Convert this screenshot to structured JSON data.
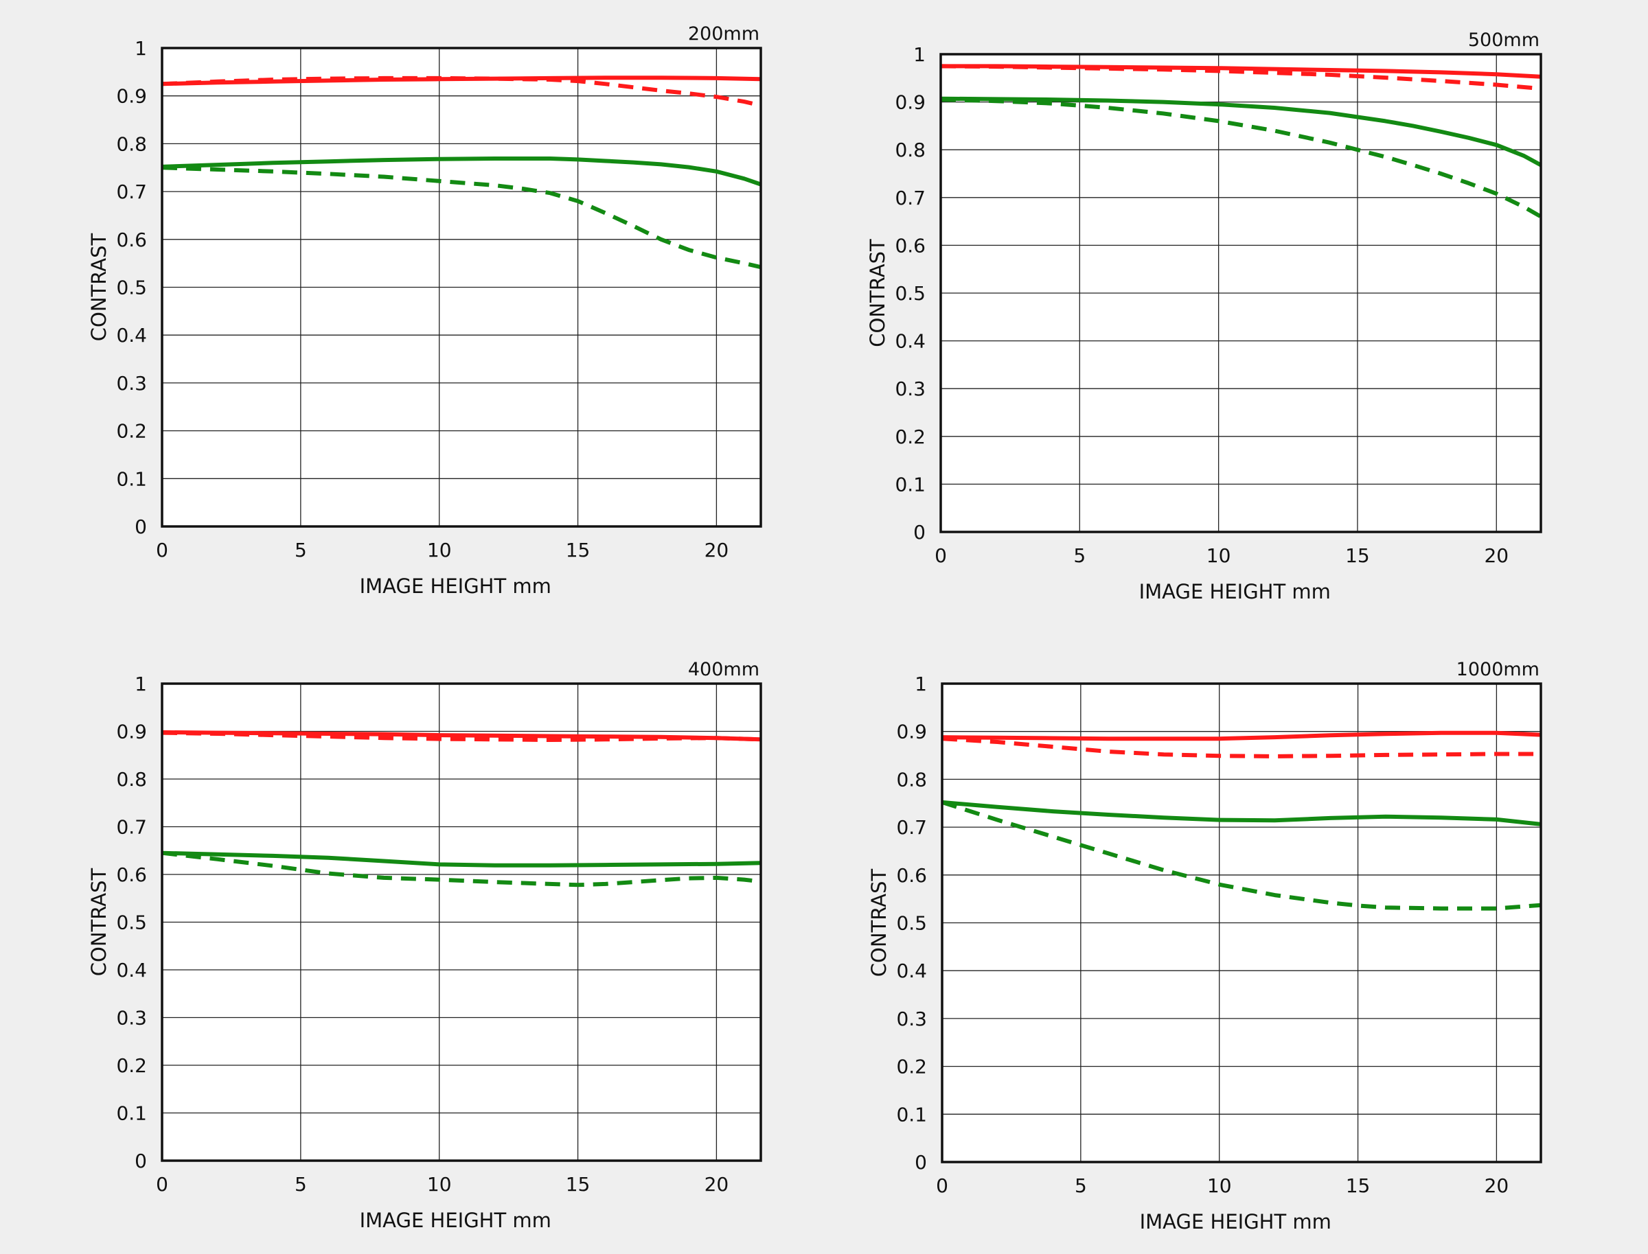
{
  "chart_data": [
    {
      "type": "line",
      "title": "200mm",
      "xlabel": "IMAGE HEIGHT   mm",
      "ylabel": "CONTRAST",
      "xlim": [
        0,
        21.6
      ],
      "ylim": [
        0,
        1
      ],
      "xticks": [
        "0",
        "5",
        "10",
        "15",
        "20"
      ],
      "yticks": [
        "0",
        "0.1",
        "0.2",
        "0.3",
        "0.4",
        "0.5",
        "0.6",
        "0.7",
        "0.8",
        "0.9",
        "1"
      ],
      "grid": true,
      "series": [
        {
          "color": "#ff1a1a",
          "dash": "solid",
          "x": [
            0,
            2,
            4,
            6,
            8,
            10,
            12,
            14,
            16,
            18,
            20,
            21.6
          ],
          "y": [
            0.925,
            0.928,
            0.93,
            0.932,
            0.934,
            0.935,
            0.936,
            0.937,
            0.938,
            0.938,
            0.937,
            0.935
          ]
        },
        {
          "color": "#ff1a1a",
          "dash": "dashed",
          "x": [
            0,
            2,
            4,
            6,
            8,
            10,
            12,
            14,
            15,
            16,
            17,
            18,
            19,
            20,
            21,
            21.6
          ],
          "y": [
            0.925,
            0.93,
            0.934,
            0.936,
            0.937,
            0.937,
            0.936,
            0.934,
            0.931,
            0.925,
            0.918,
            0.911,
            0.905,
            0.898,
            0.888,
            0.88
          ]
        },
        {
          "color": "#138a13",
          "dash": "solid",
          "x": [
            0,
            2,
            4,
            6,
            8,
            10,
            12,
            14,
            15,
            16,
            17,
            18,
            19,
            20,
            21,
            21.6
          ],
          "y": [
            0.752,
            0.756,
            0.76,
            0.763,
            0.766,
            0.768,
            0.769,
            0.769,
            0.767,
            0.764,
            0.761,
            0.757,
            0.751,
            0.742,
            0.727,
            0.715
          ]
        },
        {
          "color": "#138a13",
          "dash": "dashed",
          "x": [
            0,
            2,
            4,
            6,
            8,
            10,
            12,
            13,
            14,
            15,
            16,
            17,
            18,
            19,
            20,
            21,
            21.6
          ],
          "y": [
            0.75,
            0.746,
            0.742,
            0.737,
            0.731,
            0.722,
            0.713,
            0.706,
            0.697,
            0.68,
            0.655,
            0.628,
            0.6,
            0.578,
            0.562,
            0.55,
            0.542
          ]
        }
      ]
    },
    {
      "type": "line",
      "title": "500mm",
      "xlabel": "IMAGE HEIGHT   mm",
      "ylabel": "CONTRAST",
      "xlim": [
        0,
        21.6
      ],
      "ylim": [
        0,
        1
      ],
      "xticks": [
        "0",
        "5",
        "10",
        "15",
        "20"
      ],
      "yticks": [
        "0",
        "0.1",
        "0.2",
        "0.3",
        "0.4",
        "0.5",
        "0.6",
        "0.7",
        "0.8",
        "0.9",
        "1"
      ],
      "grid": true,
      "series": [
        {
          "color": "#ff1a1a",
          "dash": "solid",
          "x": [
            0,
            2,
            4,
            6,
            8,
            10,
            12,
            14,
            16,
            18,
            20,
            21.6
          ],
          "y": [
            0.975,
            0.975,
            0.974,
            0.973,
            0.972,
            0.971,
            0.969,
            0.967,
            0.965,
            0.962,
            0.958,
            0.953
          ]
        },
        {
          "color": "#ff1a1a",
          "dash": "dashed",
          "x": [
            0,
            2,
            4,
            6,
            8,
            10,
            12,
            14,
            16,
            18,
            20,
            21.6
          ],
          "y": [
            0.975,
            0.974,
            0.972,
            0.97,
            0.968,
            0.965,
            0.961,
            0.957,
            0.951,
            0.944,
            0.936,
            0.928
          ]
        },
        {
          "color": "#138a13",
          "dash": "solid",
          "x": [
            0,
            2,
            4,
            6,
            8,
            10,
            12,
            14,
            16,
            17,
            18,
            19,
            20,
            21,
            21.6
          ],
          "y": [
            0.907,
            0.906,
            0.905,
            0.903,
            0.9,
            0.895,
            0.888,
            0.877,
            0.86,
            0.85,
            0.838,
            0.825,
            0.81,
            0.787,
            0.768
          ]
        },
        {
          "color": "#138a13",
          "dash": "dashed",
          "x": [
            0,
            2,
            4,
            6,
            8,
            10,
            12,
            14,
            15,
            16,
            17,
            18,
            19,
            20,
            21,
            21.6
          ],
          "y": [
            0.905,
            0.902,
            0.897,
            0.888,
            0.876,
            0.86,
            0.84,
            0.815,
            0.8,
            0.785,
            0.768,
            0.75,
            0.73,
            0.708,
            0.68,
            0.66
          ]
        }
      ]
    },
    {
      "type": "line",
      "title": "400mm",
      "xlabel": "IMAGE HEIGHT   mm",
      "ylabel": "CONTRAST",
      "xlim": [
        0,
        21.6
      ],
      "ylim": [
        0,
        1
      ],
      "xticks": [
        "0",
        "5",
        "10",
        "15",
        "20"
      ],
      "yticks": [
        "0",
        "0.1",
        "0.2",
        "0.3",
        "0.4",
        "0.5",
        "0.6",
        "0.7",
        "0.8",
        "0.9",
        "1"
      ],
      "grid": true,
      "series": [
        {
          "color": "#ff1a1a",
          "dash": "solid",
          "x": [
            0,
            2,
            4,
            6,
            8,
            10,
            12,
            14,
            16,
            18,
            20,
            21.6
          ],
          "y": [
            0.898,
            0.897,
            0.896,
            0.895,
            0.894,
            0.892,
            0.891,
            0.89,
            0.889,
            0.888,
            0.886,
            0.883
          ]
        },
        {
          "color": "#ff1a1a",
          "dash": "dashed",
          "x": [
            0,
            2,
            4,
            6,
            8,
            10,
            12,
            14,
            16,
            18,
            20,
            21.6
          ],
          "y": [
            0.897,
            0.895,
            0.892,
            0.889,
            0.886,
            0.884,
            0.883,
            0.882,
            0.883,
            0.885,
            0.886,
            0.883
          ]
        },
        {
          "color": "#138a13",
          "dash": "solid",
          "x": [
            0,
            2,
            4,
            6,
            8,
            10,
            12,
            14,
            16,
            18,
            20,
            21.6
          ],
          "y": [
            0.645,
            0.642,
            0.639,
            0.635,
            0.628,
            0.621,
            0.619,
            0.619,
            0.62,
            0.621,
            0.622,
            0.624
          ]
        },
        {
          "color": "#138a13",
          "dash": "dashed",
          "x": [
            0,
            2,
            4,
            6,
            8,
            10,
            12,
            14,
            15,
            16,
            18,
            19,
            20,
            21,
            21.6
          ],
          "y": [
            0.645,
            0.632,
            0.618,
            0.602,
            0.593,
            0.589,
            0.584,
            0.58,
            0.578,
            0.58,
            0.588,
            0.592,
            0.593,
            0.589,
            0.585
          ]
        }
      ]
    },
    {
      "type": "line",
      "title": "1000mm",
      "xlabel": "IMAGE HEIGHT   mm",
      "ylabel": "CONTRAST",
      "xlim": [
        0,
        21.6
      ],
      "ylim": [
        0,
        1
      ],
      "xticks": [
        "0",
        "5",
        "10",
        "15",
        "20"
      ],
      "yticks": [
        "0",
        "0.1",
        "0.2",
        "0.3",
        "0.4",
        "0.5",
        "0.6",
        "0.7",
        "0.8",
        "0.9",
        "1"
      ],
      "grid": true,
      "series": [
        {
          "color": "#ff1a1a",
          "dash": "solid",
          "x": [
            0,
            2,
            4,
            6,
            8,
            10,
            12,
            14,
            16,
            18,
            20,
            21.6
          ],
          "y": [
            0.888,
            0.887,
            0.886,
            0.885,
            0.885,
            0.885,
            0.888,
            0.892,
            0.895,
            0.897,
            0.897,
            0.893
          ]
        },
        {
          "color": "#ff1a1a",
          "dash": "dashed",
          "x": [
            0,
            2,
            4,
            6,
            8,
            10,
            12,
            14,
            16,
            18,
            20,
            21.6
          ],
          "y": [
            0.885,
            0.878,
            0.868,
            0.858,
            0.852,
            0.849,
            0.848,
            0.849,
            0.851,
            0.852,
            0.853,
            0.853
          ]
        },
        {
          "color": "#138a13",
          "dash": "solid",
          "x": [
            0,
            2,
            4,
            6,
            8,
            10,
            12,
            14,
            16,
            18,
            20,
            21.6
          ],
          "y": [
            0.752,
            0.742,
            0.733,
            0.726,
            0.72,
            0.715,
            0.714,
            0.719,
            0.722,
            0.72,
            0.716,
            0.706
          ]
        },
        {
          "color": "#138a13",
          "dash": "dashed",
          "x": [
            0,
            2,
            4,
            6,
            8,
            10,
            12,
            14,
            15,
            16,
            18,
            20,
            21.6
          ],
          "y": [
            0.752,
            0.715,
            0.68,
            0.645,
            0.61,
            0.58,
            0.558,
            0.542,
            0.536,
            0.532,
            0.53,
            0.53,
            0.537
          ]
        }
      ]
    }
  ]
}
